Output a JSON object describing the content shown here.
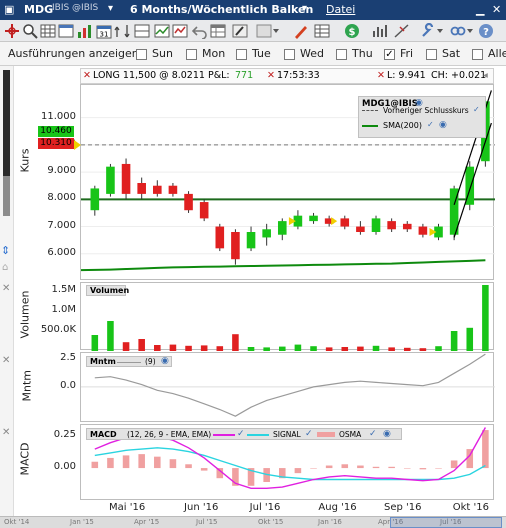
{
  "titlebar": {
    "symbol": "MDG",
    "exchange": "IBIS @IBIS",
    "period": "6 Months/Wöchentlich Balken",
    "menu_datei": "Datei"
  },
  "filterbar": {
    "label": "Ausführungen anzeigen",
    "days": [
      {
        "label": "Sun",
        "checked": false
      },
      {
        "label": "Mon",
        "checked": false
      },
      {
        "label": "Tue",
        "checked": false
      },
      {
        "label": "Wed",
        "checked": false
      },
      {
        "label": "Thu",
        "checked": false
      },
      {
        "label": "Fri",
        "checked": true
      },
      {
        "label": "Sat",
        "checked": false
      },
      {
        "label": "Alle",
        "checked": false
      }
    ]
  },
  "infobar": {
    "position": "LONG 11,500 @ 8.0211 P&L:",
    "pnl": "771",
    "time": "17:53:33",
    "l": "L: 9.941",
    "ch": "CH: +0.021"
  },
  "price_panel": {
    "axis_title": "Kurs",
    "legend_title": "MDG1@IBIS",
    "legend_prev_close": "Vorheriger Schlusskurs",
    "legend_sma": "SMA(200)",
    "bid_tag": "10.460",
    "ask_tag": "10.310",
    "ref_line_value": 8.0
  },
  "volume_panel": {
    "axis_title": "Volumen",
    "legend_title": "Volumen"
  },
  "momentum_panel": {
    "axis_title": "Mntm",
    "legend_title": "Mntm",
    "legend_param": "(9)"
  },
  "macd_panel": {
    "axis_title": "MACD",
    "legend_title": "MACD",
    "legend_params": "(12, 26, 9 - EMA, EMA)",
    "legend_signal": "SIGNAL",
    "legend_osma": "OSMA"
  },
  "x_axis": {
    "labels": [
      "Mai '16",
      "Jun '16",
      "Jul '16",
      "Aug '16",
      "Sep '16",
      "Okt '16"
    ]
  },
  "navigator": {
    "labels": [
      "Okt '14",
      "Jan '15",
      "Apr '15",
      "Jul '15",
      "Okt '15",
      "Jan '16",
      "Apr '16",
      "Jul '16",
      "Okt '16",
      "Mai '16",
      "Aug '16",
      "Nov '16"
    ]
  },
  "colors": {
    "up": "#18c418",
    "down": "#e02020",
    "sma": "#0e8a0e",
    "ref": "#1d6a1d",
    "mntm": "#9a9a9a",
    "macd": "#e020e0",
    "signal": "#2ad4e0",
    "osma": "#f0a0a0",
    "titlebar": "#1a3f73"
  },
  "chart_data": [
    {
      "type": "candlestick",
      "title": "MDG1@IBIS",
      "ylabel": "Kurs",
      "ylim": [
        5.0,
        12.2
      ],
      "yticks": [
        6.0,
        7.0,
        8.0,
        9.0,
        10.0,
        11.0
      ],
      "ytick_labels": [
        "6.000",
        "7.000",
        "8.000",
        "9.000",
        "10.000",
        "11.000"
      ],
      "bars": [
        {
          "o": 7.6,
          "h": 8.5,
          "l": 7.4,
          "c": 8.4
        },
        {
          "o": 8.2,
          "h": 9.3,
          "l": 8.1,
          "c": 9.2
        },
        {
          "o": 9.3,
          "h": 9.5,
          "l": 8.0,
          "c": 8.2
        },
        {
          "o": 8.6,
          "h": 8.8,
          "l": 8.0,
          "c": 8.2
        },
        {
          "o": 8.5,
          "h": 8.7,
          "l": 8.1,
          "c": 8.2
        },
        {
          "o": 8.5,
          "h": 8.6,
          "l": 8.1,
          "c": 8.2
        },
        {
          "o": 8.2,
          "h": 8.3,
          "l": 7.5,
          "c": 7.6
        },
        {
          "o": 7.9,
          "h": 8.0,
          "l": 7.2,
          "c": 7.3
        },
        {
          "o": 7.0,
          "h": 7.1,
          "l": 6.1,
          "c": 6.2
        },
        {
          "o": 6.8,
          "h": 6.9,
          "l": 5.6,
          "c": 5.8
        },
        {
          "o": 6.2,
          "h": 7.0,
          "l": 6.1,
          "c": 6.8
        },
        {
          "o": 6.6,
          "h": 7.1,
          "l": 6.3,
          "c": 6.9
        },
        {
          "o": 6.7,
          "h": 7.3,
          "l": 6.5,
          "c": 7.2
        },
        {
          "o": 7.0,
          "h": 7.6,
          "l": 6.9,
          "c": 7.4
        },
        {
          "o": 7.2,
          "h": 7.5,
          "l": 7.1,
          "c": 7.4
        },
        {
          "o": 7.3,
          "h": 7.4,
          "l": 7.0,
          "c": 7.1
        },
        {
          "o": 7.3,
          "h": 7.4,
          "l": 6.9,
          "c": 7.0
        },
        {
          "o": 7.0,
          "h": 7.2,
          "l": 6.7,
          "c": 6.8
        },
        {
          "o": 6.8,
          "h": 7.4,
          "l": 6.7,
          "c": 7.3
        },
        {
          "o": 7.2,
          "h": 7.3,
          "l": 6.8,
          "c": 6.9
        },
        {
          "o": 7.1,
          "h": 7.2,
          "l": 6.8,
          "c": 6.9
        },
        {
          "o": 7.0,
          "h": 7.1,
          "l": 6.6,
          "c": 6.7
        },
        {
          "o": 6.6,
          "h": 7.1,
          "l": 6.5,
          "c": 7.0
        },
        {
          "o": 6.7,
          "h": 8.5,
          "l": 6.5,
          "c": 8.4
        },
        {
          "o": 7.8,
          "h": 9.4,
          "l": 7.6,
          "c": 9.2
        },
        {
          "o": 9.4,
          "h": 11.7,
          "l": 9.2,
          "c": 11.6
        }
      ],
      "sma200": [
        5.4,
        5.42,
        5.44,
        5.46,
        5.48,
        5.5,
        5.51,
        5.52,
        5.53,
        5.54,
        5.55,
        5.56,
        5.57,
        5.58,
        5.59,
        5.6,
        5.61,
        5.62,
        5.63,
        5.64,
        5.66,
        5.68,
        5.7,
        5.72,
        5.74,
        5.76
      ]
    },
    {
      "type": "bar",
      "title": "Volumen",
      "ylabel": "Volumen",
      "ylim": [
        0,
        1700000
      ],
      "yticks": [
        500000,
        1000000,
        1500000
      ],
      "ytick_labels": [
        "500.0K",
        "1.0M",
        "1.5M"
      ],
      "values": [
        400000,
        750000,
        220000,
        300000,
        150000,
        160000,
        130000,
        140000,
        120000,
        420000,
        100000,
        90000,
        110000,
        160000,
        120000,
        90000,
        100000,
        110000,
        130000,
        90000,
        80000,
        70000,
        120000,
        500000,
        580000,
        1650000
      ],
      "up": [
        true,
        true,
        false,
        false,
        false,
        false,
        false,
        false,
        false,
        false,
        true,
        true,
        true,
        true,
        true,
        false,
        false,
        false,
        true,
        false,
        false,
        false,
        true,
        true,
        true,
        true
      ]
    },
    {
      "type": "line",
      "title": "Mntm",
      "ylabel": "Mntm",
      "ylim": [
        -3.2,
        3.0
      ],
      "yticks": [
        0.0,
        2.5
      ],
      "ytick_labels": [
        "0.0",
        "2.5"
      ],
      "values": [
        0.8,
        0.9,
        0.6,
        0.2,
        -0.3,
        -0.6,
        -1.0,
        -1.5,
        -2.0,
        -2.6,
        -1.8,
        -1.2,
        -0.8,
        -0.4,
        0.0,
        0.2,
        0.4,
        0.5,
        0.4,
        0.3,
        0.2,
        0.1,
        0.4,
        1.2,
        2.0,
        2.9
      ]
    },
    {
      "type": "bar",
      "title": "MACD",
      "ylabel": "MACD",
      "ylim": [
        -0.26,
        0.34
      ],
      "yticks": [
        0.0,
        0.25
      ],
      "ytick_labels": [
        "0.00",
        "0.25"
      ],
      "macd": [
        0.15,
        0.2,
        0.24,
        0.26,
        0.25,
        0.22,
        0.16,
        0.08,
        -0.02,
        -0.12,
        -0.16,
        -0.16,
        -0.15,
        -0.12,
        -0.09,
        -0.07,
        -0.06,
        -0.07,
        -0.08,
        -0.08,
        -0.09,
        -0.1,
        -0.09,
        -0.02,
        0.1,
        0.32
      ],
      "signal": [
        0.1,
        0.12,
        0.14,
        0.15,
        0.16,
        0.15,
        0.13,
        0.1,
        0.06,
        0.02,
        -0.02,
        -0.05,
        -0.07,
        -0.08,
        -0.09,
        -0.09,
        -0.09,
        -0.09,
        -0.09,
        -0.09,
        -0.09,
        -0.09,
        -0.09,
        -0.08,
        -0.05,
        0.02
      ],
      "osma": [
        0.05,
        0.08,
        0.1,
        0.11,
        0.09,
        0.07,
        0.03,
        -0.02,
        -0.08,
        -0.14,
        -0.14,
        -0.11,
        -0.08,
        -0.04,
        0.0,
        0.02,
        0.03,
        0.02,
        0.01,
        0.01,
        0.0,
        -0.01,
        0.0,
        0.06,
        0.15,
        0.3
      ]
    }
  ]
}
